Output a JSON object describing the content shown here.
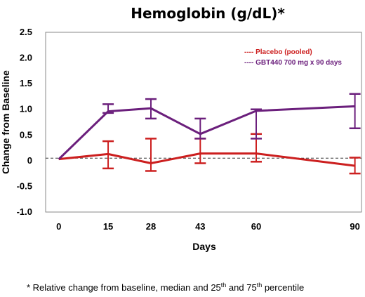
{
  "chart_data": {
    "type": "line",
    "title": "Hemoglobin (g/dL)*",
    "xlabel": "Days",
    "ylabel": "Change from Baseline",
    "x": [
      0,
      15,
      28,
      43,
      60,
      90
    ],
    "x_tick_labels": [
      "0",
      "15",
      "28",
      "43",
      "60",
      "90"
    ],
    "xlim": [
      -4,
      92
    ],
    "ylim": [
      -1.0,
      2.5
    ],
    "y_ticks": [
      2.5,
      2.0,
      1.5,
      1.0,
      0.5,
      0,
      -0.5,
      -1.0
    ],
    "y_tick_labels": [
      "2.5",
      "2.0",
      "1.5",
      "1.0",
      "0.5",
      "0",
      "-0.5",
      "-1.0"
    ],
    "reference_line": {
      "y": 0.05,
      "style": "dashed",
      "color": "#333333"
    },
    "grid": false,
    "legend_position": "top-right",
    "series": [
      {
        "name": "Placebo (pooled)",
        "legend_label": "---- Placebo (pooled)",
        "color": "#cc1f1f",
        "values": [
          0.03,
          0.13,
          -0.05,
          0.14,
          0.14,
          -0.1
        ],
        "lower": [
          0.03,
          -0.15,
          -0.2,
          -0.05,
          -0.02,
          -0.25
        ],
        "upper": [
          0.03,
          0.38,
          0.43,
          0.43,
          0.52,
          0.06
        ]
      },
      {
        "name": "GBT440 700 mg x 90 days",
        "legend_label": "---- GBT440 700 mg x 90 days",
        "color": "#6b1f7c",
        "values": [
          0.03,
          0.96,
          1.02,
          0.52,
          0.97,
          1.06
        ],
        "lower": [
          0.03,
          0.93,
          0.82,
          0.43,
          0.43,
          0.63
        ],
        "upper": [
          0.03,
          1.1,
          1.2,
          0.82,
          1.0,
          1.3
        ]
      }
    ],
    "footnote": {
      "prefix": "* Relative change from baseline, median and 25",
      "sup1": "th",
      "mid": " and 75",
      "sup2": "th",
      "suffix": " percentile"
    }
  }
}
